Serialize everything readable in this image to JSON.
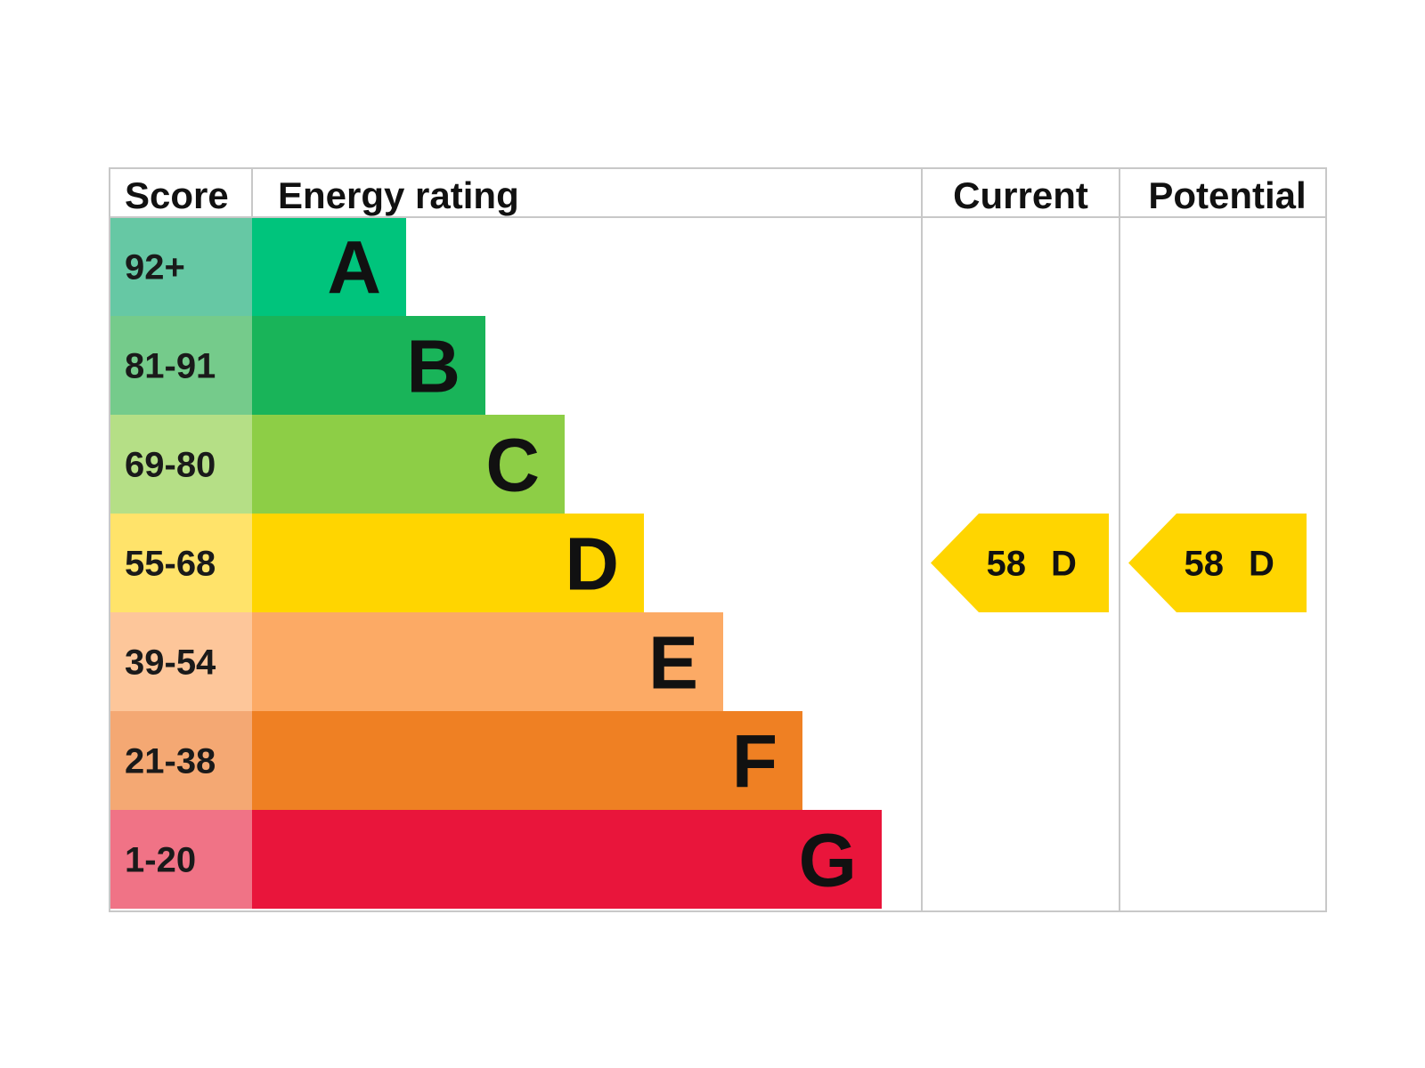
{
  "headers": {
    "score": "Score",
    "energy_rating": "Energy rating",
    "current": "Current",
    "potential": "Potential"
  },
  "chart_data": {
    "type": "bar",
    "orientation": "horizontal",
    "bands": [
      {
        "score": "92+",
        "letter": "A",
        "color": "#00c47c",
        "score_bg": "#66c8a4"
      },
      {
        "score": "81-91",
        "letter": "B",
        "color": "#19b459",
        "score_bg": "#75cb8b"
      },
      {
        "score": "69-80",
        "letter": "C",
        "color": "#8dce46",
        "score_bg": "#b5df86"
      },
      {
        "score": "55-68",
        "letter": "D",
        "color": "#ffd500",
        "score_bg": "#ffe36a"
      },
      {
        "score": "39-54",
        "letter": "E",
        "color": "#fcaa65",
        "score_bg": "#fdc69a"
      },
      {
        "score": "21-38",
        "letter": "F",
        "color": "#ef8023",
        "score_bg": "#f4a873"
      },
      {
        "score": "1-20",
        "letter": "G",
        "color": "#e9153b",
        "score_bg": "#f07386"
      }
    ],
    "current": {
      "value": "58",
      "letter": "D",
      "band_index": 3,
      "color": "#ffd500"
    },
    "potential": {
      "value": "58",
      "letter": "D",
      "band_index": 3,
      "color": "#ffd500"
    }
  }
}
